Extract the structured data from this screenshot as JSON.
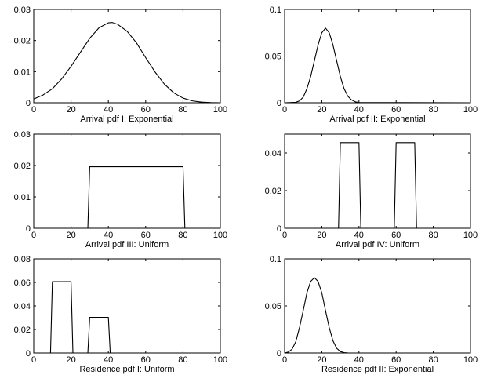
{
  "chart_data": [
    {
      "type": "line",
      "title": "",
      "xlabel": "Arrival pdf I: Exponential",
      "ylabel": "",
      "xlim": [
        0,
        100
      ],
      "ylim": [
        0,
        0.03
      ],
      "xticks": [
        0,
        20,
        40,
        60,
        80,
        100
      ],
      "yticks": [
        0,
        0.01,
        0.02,
        0.03
      ],
      "xtick_labels": [
        "0",
        "20",
        "40",
        "60",
        "80",
        "100"
      ],
      "ytick_labels": [
        "0",
        "0.01",
        "0.02",
        "0.03"
      ],
      "grid": false,
      "series": [
        {
          "x": [
            0,
            5,
            10,
            15,
            20,
            25,
            30,
            35,
            40,
            42,
            45,
            50,
            55,
            60,
            65,
            70,
            75,
            80,
            85,
            90,
            95,
            100
          ],
          "y": [
            0.0012,
            0.0025,
            0.0045,
            0.0077,
            0.0117,
            0.0162,
            0.0207,
            0.0241,
            0.0257,
            0.0258,
            0.0252,
            0.023,
            0.0193,
            0.0145,
            0.0099,
            0.006,
            0.0032,
            0.0015,
            0.0006,
            0.0002,
            5e-05,
            0.0
          ]
        }
      ]
    },
    {
      "type": "line",
      "title": "",
      "xlabel": "Arrival pdf II: Exponential",
      "ylabel": "",
      "xlim": [
        0,
        100
      ],
      "ylim": [
        0,
        0.1
      ],
      "xticks": [
        0,
        20,
        40,
        60,
        80,
        100
      ],
      "yticks": [
        0,
        0.05,
        0.1
      ],
      "xtick_labels": [
        "0",
        "20",
        "40",
        "60",
        "80",
        "100"
      ],
      "ytick_labels": [
        "0",
        "0.05",
        "0.1"
      ],
      "grid": false,
      "series": [
        {
          "x": [
            0,
            6,
            8,
            10,
            12,
            14,
            16,
            18,
            20,
            22,
            24,
            26,
            28,
            30,
            32,
            34,
            36,
            38,
            40,
            100
          ],
          "y": [
            0,
            0.0005,
            0.002,
            0.006,
            0.015,
            0.028,
            0.045,
            0.062,
            0.075,
            0.08,
            0.075,
            0.062,
            0.045,
            0.028,
            0.015,
            0.007,
            0.003,
            0.001,
            0.0002,
            0
          ]
        }
      ]
    },
    {
      "type": "line",
      "title": "",
      "xlabel": "Arrival pdf III: Uniform",
      "ylabel": "",
      "xlim": [
        0,
        100
      ],
      "ylim": [
        0,
        0.03
      ],
      "xticks": [
        0,
        20,
        40,
        60,
        80,
        100
      ],
      "yticks": [
        0,
        0.01,
        0.02,
        0.03
      ],
      "xtick_labels": [
        "0",
        "20",
        "40",
        "60",
        "80",
        "100"
      ],
      "ytick_labels": [
        "0",
        "0.01",
        "0.02",
        "0.03"
      ],
      "grid": false,
      "series": [
        {
          "x": [
            0,
            29,
            30,
            80,
            81,
            100
          ],
          "y": [
            0,
            0,
            0.0196,
            0.0196,
            0,
            0
          ]
        }
      ]
    },
    {
      "type": "line",
      "title": "",
      "xlabel": "Arrival pdf IV: Uniform",
      "ylabel": "",
      "xlim": [
        0,
        100
      ],
      "ylim": [
        0,
        0.05
      ],
      "xticks": [
        0,
        20,
        40,
        60,
        80,
        100
      ],
      "yticks": [
        0,
        0.02,
        0.04
      ],
      "xtick_labels": [
        "0",
        "20",
        "40",
        "60",
        "80",
        "100"
      ],
      "ytick_labels": [
        "0",
        "0.02",
        "0.04"
      ],
      "grid": false,
      "series": [
        {
          "x": [
            0,
            29,
            30,
            40,
            41,
            59,
            60,
            70,
            71,
            100
          ],
          "y": [
            0,
            0,
            0.0455,
            0.0455,
            0,
            0,
            0.0455,
            0.0455,
            0,
            0
          ]
        }
      ]
    },
    {
      "type": "line",
      "title": "",
      "xlabel": "Residence pdf I: Uniform",
      "ylabel": "",
      "xlim": [
        0,
        100
      ],
      "ylim": [
        0,
        0.08
      ],
      "xticks": [
        0,
        20,
        40,
        60,
        80,
        100
      ],
      "yticks": [
        0,
        0.02,
        0.04,
        0.06,
        0.08
      ],
      "xtick_labels": [
        "0",
        "20",
        "40",
        "60",
        "80",
        "100"
      ],
      "ytick_labels": [
        "0",
        "0.02",
        "0.04",
        "0.06",
        "0.08"
      ],
      "grid": false,
      "series": [
        {
          "x": [
            0,
            9,
            10,
            20,
            21,
            29,
            30,
            40,
            41,
            100
          ],
          "y": [
            0,
            0,
            0.0606,
            0.0606,
            0,
            0,
            0.0303,
            0.0303,
            0,
            0
          ]
        }
      ]
    },
    {
      "type": "line",
      "title": "",
      "xlabel": "Residence pdf II: Exponential",
      "ylabel": "",
      "xlim": [
        0,
        100
      ],
      "ylim": [
        0,
        0.1
      ],
      "xticks": [
        0,
        20,
        40,
        60,
        80,
        100
      ],
      "yticks": [
        0,
        0.05,
        0.1
      ],
      "xtick_labels": [
        "0",
        "20",
        "40",
        "60",
        "80",
        "100"
      ],
      "ytick_labels": [
        "0",
        "0.05",
        "0.1"
      ],
      "grid": false,
      "series": [
        {
          "x": [
            0,
            2,
            4,
            6,
            8,
            10,
            12,
            14,
            16,
            18,
            20,
            22,
            24,
            26,
            28,
            30,
            32,
            34,
            36,
            100
          ],
          "y": [
            0,
            0.001,
            0.004,
            0.012,
            0.027,
            0.045,
            0.064,
            0.076,
            0.08,
            0.076,
            0.064,
            0.045,
            0.027,
            0.013,
            0.005,
            0.0015,
            0.0004,
            0.0001,
            0,
            0
          ]
        }
      ]
    }
  ]
}
